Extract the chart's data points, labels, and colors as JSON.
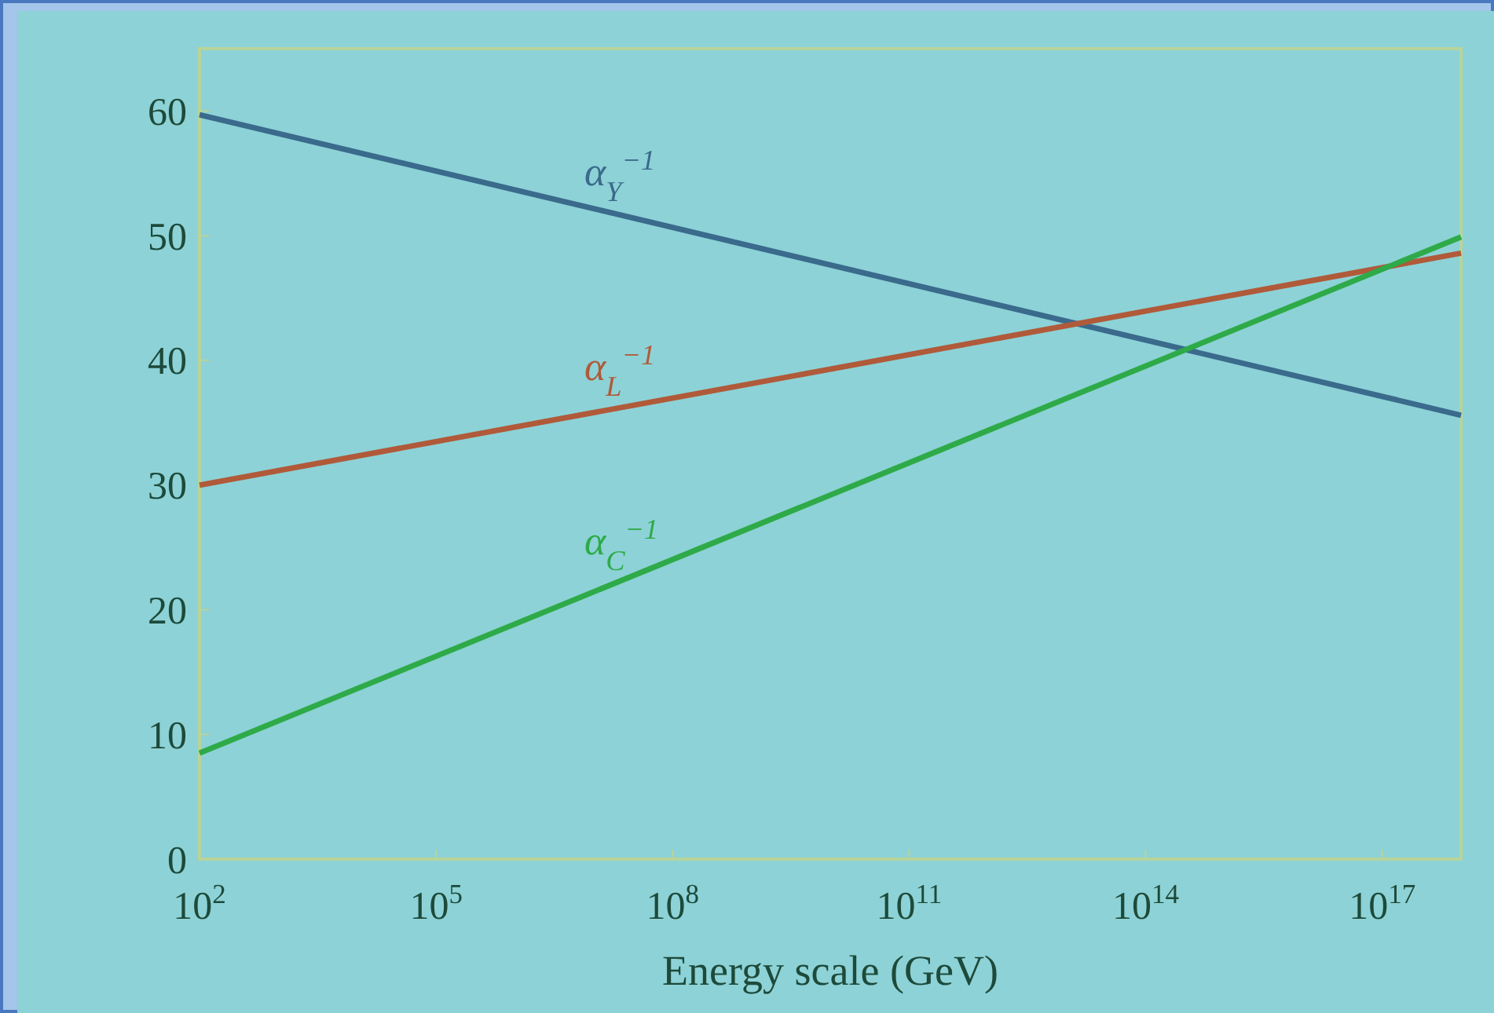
{
  "chart_data": {
    "type": "line",
    "xlabel": "Energy scale (GeV)",
    "log": "x",
    "grid": false,
    "marker": "none",
    "line_style": "solid",
    "xlim": [
      100,
      1e+18
    ],
    "xticks": [
      {
        "value": 100,
        "label": "10$^{2}$"
      },
      {
        "value": 100000,
        "label": "10$^{5}$"
      },
      {
        "value": 100000000,
        "label": "10$^{8}$"
      },
      {
        "value": 100000000000,
        "label": "10$^{11}$"
      },
      {
        "value": 100000000000000,
        "label": "10$^{14}$"
      },
      {
        "value": 1e+17,
        "label": "10$^{17}$"
      }
    ],
    "ylim": [
      0,
      65
    ],
    "yticks": [
      0,
      10,
      20,
      30,
      40,
      50,
      60
    ],
    "x": [
      100,
      1e+18
    ],
    "series": [
      {
        "name": "α$_{Y}$$^{−1}$",
        "color": "#3a6a8c",
        "values": [
          59.7,
          35.6
        ]
      },
      {
        "name": "α$_{L}$$^{−1}$",
        "color": "#b05a3a",
        "values": [
          30,
          48.6
        ]
      },
      {
        "name": "α$_{C}$$^{−1}$",
        "color": "#2eaa48",
        "values": [
          8.5,
          49.9
        ]
      }
    ]
  }
}
